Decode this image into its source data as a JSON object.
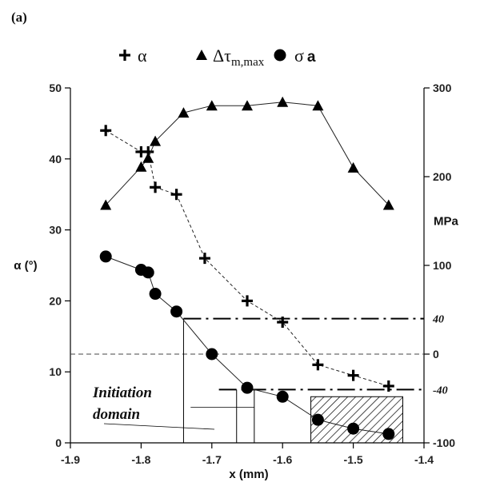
{
  "chart_data": {
    "type": "scatter",
    "panel_label": "(a)",
    "xlabel": "x (mm)",
    "ylabel": "α (°)",
    "y2label": "MPa",
    "xlim": [
      -1.9,
      -1.4
    ],
    "ylim": [
      0,
      50
    ],
    "y2lim": [
      -100,
      300
    ],
    "xticks": [
      "-1.9",
      "-1.8",
      "-1.7",
      "-1.6",
      "-1.5",
      "-1.4"
    ],
    "yticks": [
      "0",
      "10",
      "20",
      "30",
      "40",
      "50"
    ],
    "y2ticks": [
      "-100",
      "0",
      "100",
      "200",
      "300"
    ],
    "grid": false,
    "legend_position": "top",
    "legend": [
      {
        "marker": "cross",
        "label": "α"
      },
      {
        "marker": "triangle",
        "label": "Δτm,max"
      },
      {
        "marker": "circle",
        "label": "σa"
      }
    ],
    "series": [
      {
        "name": "α",
        "marker": "cross",
        "line": "dashed",
        "axis": "left",
        "x": [
          -1.85,
          -1.8,
          -1.79,
          -1.78,
          -1.75,
          -1.71,
          -1.65,
          -1.6,
          -1.55,
          -1.5,
          -1.45
        ],
        "y": [
          44,
          41,
          41,
          36,
          35,
          26,
          20,
          17,
          11,
          9.5,
          8
        ]
      },
      {
        "name": "Δτm,max",
        "marker": "triangle",
        "line": "solid",
        "axis": "right",
        "x": [
          -1.85,
          -1.8,
          -1.79,
          -1.78,
          -1.74,
          -1.7,
          -1.65,
          -1.6,
          -1.55,
          -1.5,
          -1.45
        ],
        "y": [
          168,
          211,
          221,
          240,
          272,
          280,
          280,
          284,
          280,
          210,
          168
        ]
      },
      {
        "name": "σa",
        "marker": "circle",
        "line": "solid",
        "axis": "right",
        "x": [
          -1.85,
          -1.8,
          -1.79,
          -1.78,
          -1.75,
          -1.7,
          -1.65,
          -1.6,
          -1.55,
          -1.5,
          -1.45
        ],
        "y": [
          110,
          95,
          92,
          68,
          48,
          0,
          -38,
          -48,
          -74,
          -84,
          -90
        ]
      }
    ],
    "reference_levels": [
      {
        "value": 40,
        "label": "40",
        "x_from": -1.74
      },
      {
        "value": -40,
        "label": "-40",
        "x_from": -1.69
      }
    ],
    "zero_line": {
      "value": 0
    },
    "annotations": [
      {
        "text_lines": [
          "Initiation",
          "domain"
        ]
      }
    ],
    "hatched_region": {
      "x": [
        -1.56,
        -1.43
      ],
      "y": [
        0,
        6.5
      ]
    }
  }
}
